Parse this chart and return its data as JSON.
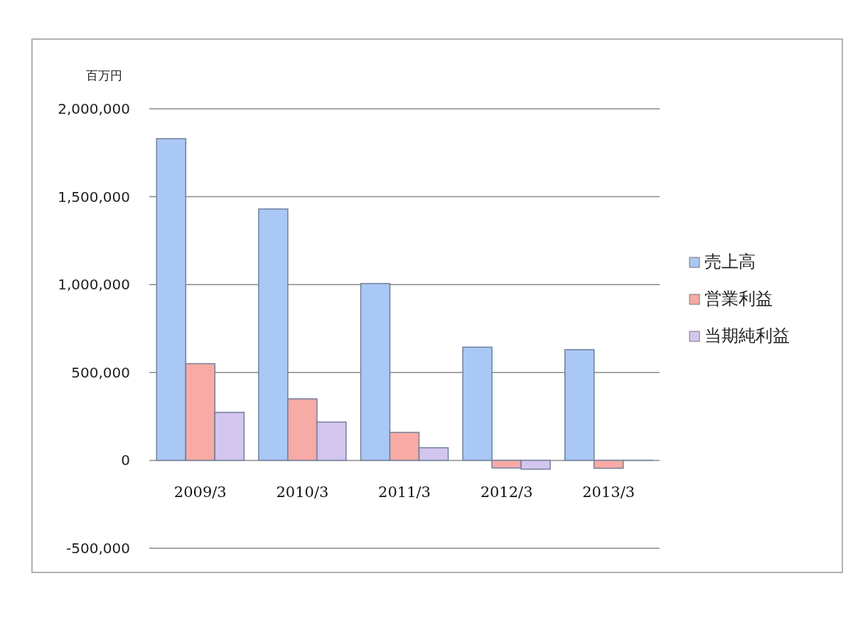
{
  "chart_data": {
    "type": "bar",
    "ylabel": "百万円",
    "categories": [
      "2009/3",
      "2010/3",
      "2011/3",
      "2012/3",
      "2013/3"
    ],
    "series": [
      {
        "name": "売上高",
        "color": "#a9c8f5",
        "values": [
          1830000,
          1430000,
          1006000,
          644000,
          630000
        ]
      },
      {
        "name": "営業利益",
        "color": "#f8aaa4",
        "values": [
          550000,
          350000,
          159000,
          -43000,
          -45000
        ]
      },
      {
        "name": "当期純利益",
        "color": "#d3c6ee",
        "values": [
          273000,
          218000,
          72000,
          -50000,
          0
        ]
      }
    ],
    "ylim": [
      -500000,
      2000000
    ],
    "yticks": [
      {
        "value": -500000,
        "label": "-500,000"
      },
      {
        "value": 0,
        "label": "0"
      },
      {
        "value": 500000,
        "label": "500,000"
      },
      {
        "value": 1000000,
        "label": "1,000,000"
      },
      {
        "value": 1500000,
        "label": "1,500,000"
      },
      {
        "value": 2000000,
        "label": "2,000,000"
      }
    ],
    "grid": "y",
    "legend": "right"
  }
}
